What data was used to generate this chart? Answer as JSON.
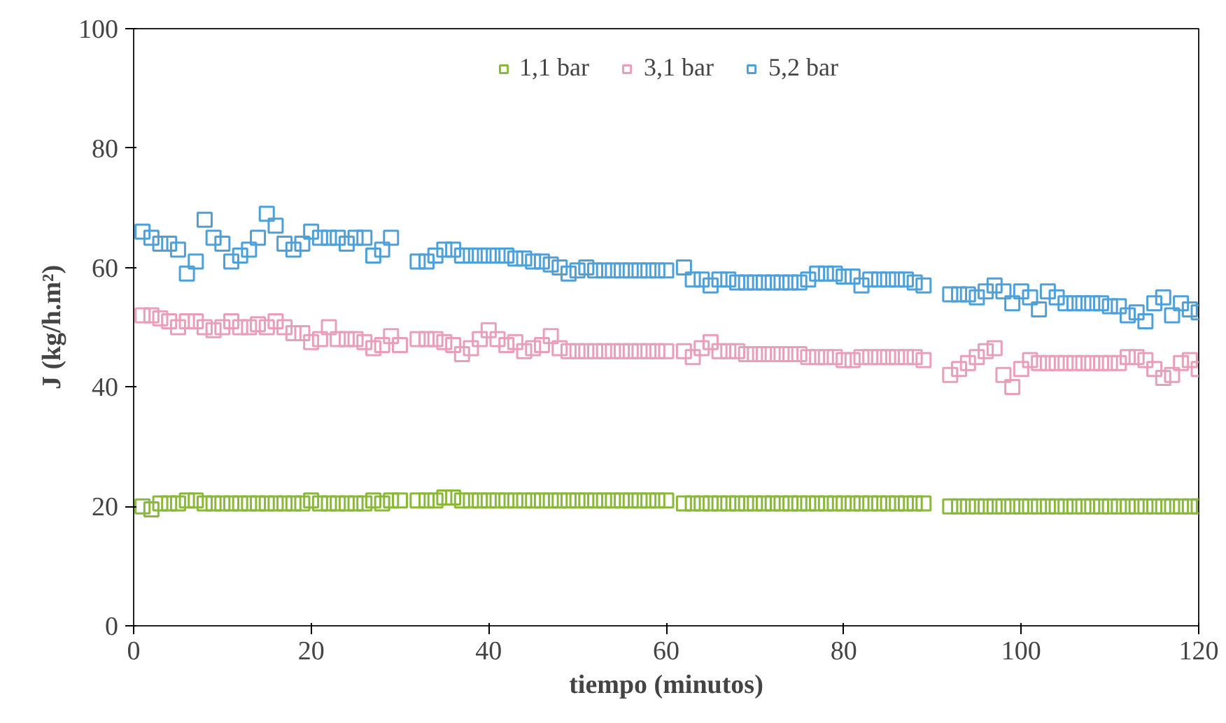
{
  "chart_data": {
    "type": "scatter",
    "xlabel": "tiempo (minutos)",
    "ylabel": "J (kg/h.m²)",
    "xlim": [
      0,
      120
    ],
    "ylim": [
      0,
      100
    ],
    "xticks": [
      0,
      20,
      40,
      60,
      80,
      100,
      120
    ],
    "yticks": [
      0,
      20,
      40,
      60,
      80,
      100
    ],
    "grid": false,
    "legend": "top",
    "marker": "square",
    "series": [
      {
        "name": "1,1 bar",
        "color": "#8ab83c",
        "x": [
          1,
          2,
          3,
          4,
          5,
          6,
          7,
          8,
          9,
          10,
          11,
          12,
          13,
          14,
          15,
          16,
          17,
          18,
          19,
          20,
          21,
          22,
          23,
          24,
          25,
          26,
          27,
          28,
          29,
          30,
          32,
          33,
          34,
          35,
          36,
          37,
          38,
          39,
          40,
          41,
          42,
          43,
          44,
          45,
          46,
          47,
          48,
          49,
          50,
          51,
          52,
          53,
          54,
          55,
          56,
          57,
          58,
          59,
          60,
          62,
          63,
          64,
          65,
          66,
          67,
          68,
          69,
          70,
          71,
          72,
          73,
          74,
          75,
          76,
          77,
          78,
          79,
          80,
          81,
          82,
          83,
          84,
          85,
          86,
          87,
          88,
          89,
          92,
          93,
          94,
          95,
          96,
          97,
          98,
          99,
          100,
          101,
          102,
          103,
          104,
          105,
          106,
          107,
          108,
          109,
          110,
          111,
          112,
          113,
          114,
          115,
          116,
          117,
          118,
          119,
          120
        ],
        "values": [
          20,
          19.5,
          20.5,
          20.5,
          20.5,
          21,
          21,
          20.5,
          20.5,
          20.5,
          20.5,
          20.5,
          20.5,
          20.5,
          20.5,
          20.5,
          20.5,
          20.5,
          20.5,
          21,
          20.5,
          20.5,
          20.5,
          20.5,
          20.5,
          20.5,
          21,
          20.5,
          21,
          21,
          21,
          21,
          21,
          21.5,
          21.5,
          21,
          21,
          21,
          21,
          21,
          21,
          21,
          21,
          21,
          21,
          21,
          21,
          21,
          21,
          21,
          21,
          21,
          21,
          21,
          21,
          21,
          21,
          21,
          21,
          20.5,
          20.5,
          20.5,
          20.5,
          20.5,
          20.5,
          20.5,
          20.5,
          20.5,
          20.5,
          20.5,
          20.5,
          20.5,
          20.5,
          20.5,
          20.5,
          20.5,
          20.5,
          20.5,
          20.5,
          20.5,
          20.5,
          20.5,
          20.5,
          20.5,
          20.5,
          20.5,
          20.5,
          20,
          20,
          20,
          20,
          20,
          20,
          20,
          20,
          20,
          20,
          20,
          20,
          20,
          20,
          20,
          20,
          20,
          20,
          20,
          20,
          20,
          20,
          20,
          20,
          20,
          20,
          20,
          20,
          20
        ]
      },
      {
        "name": "3,1 bar",
        "color": "#e8a0b8",
        "x": [
          1,
          2,
          3,
          4,
          5,
          6,
          7,
          8,
          9,
          10,
          11,
          12,
          13,
          14,
          15,
          16,
          17,
          18,
          19,
          20,
          21,
          22,
          23,
          24,
          25,
          26,
          27,
          28,
          29,
          30,
          32,
          33,
          34,
          35,
          36,
          37,
          38,
          39,
          40,
          41,
          42,
          43,
          44,
          45,
          46,
          47,
          48,
          49,
          50,
          51,
          52,
          53,
          54,
          55,
          56,
          57,
          58,
          59,
          60,
          62,
          63,
          64,
          65,
          66,
          67,
          68,
          69,
          70,
          71,
          72,
          73,
          74,
          75,
          76,
          77,
          78,
          79,
          80,
          81,
          82,
          83,
          84,
          85,
          86,
          87,
          88,
          89,
          92,
          93,
          94,
          95,
          96,
          97,
          98,
          99,
          100,
          101,
          102,
          103,
          104,
          105,
          106,
          107,
          108,
          109,
          110,
          111,
          112,
          113,
          114,
          115,
          116,
          117,
          118,
          119,
          120
        ],
        "values": [
          52,
          52,
          51.5,
          51,
          50,
          51,
          51,
          50,
          49.5,
          50,
          51,
          50,
          50,
          50.5,
          50,
          51,
          50,
          49,
          49,
          47.5,
          48,
          50,
          48,
          48,
          48,
          47.5,
          46.5,
          47,
          48.5,
          47,
          48,
          48,
          48,
          47.5,
          47,
          45.5,
          46.5,
          48,
          49.5,
          48,
          47,
          47.5,
          46,
          46.5,
          47,
          48.5,
          46.5,
          46,
          46,
          46,
          46,
          46,
          46,
          46,
          46,
          46,
          46,
          46,
          46,
          46,
          45,
          46.5,
          47.5,
          46,
          46,
          46,
          45.5,
          45.5,
          45.5,
          45.5,
          45.5,
          45.5,
          45.5,
          45,
          45,
          45,
          45,
          44.5,
          44.5,
          45,
          45,
          45,
          45,
          45,
          45,
          45,
          44.5,
          42,
          43,
          44,
          45,
          46,
          46.5,
          42,
          40,
          43,
          44.5,
          44,
          44,
          44,
          44,
          44,
          44,
          44,
          44,
          44,
          44,
          45,
          45,
          44.5,
          43,
          41.5,
          42,
          44,
          44.5,
          43
        ]
      },
      {
        "name": "5,2 bar",
        "color": "#4fa0d8",
        "x": [
          1,
          2,
          3,
          4,
          5,
          6,
          7,
          8,
          9,
          10,
          11,
          12,
          13,
          14,
          15,
          16,
          17,
          18,
          19,
          20,
          21,
          22,
          23,
          24,
          25,
          26,
          27,
          28,
          29,
          32,
          33,
          34,
          35,
          36,
          37,
          38,
          39,
          40,
          41,
          42,
          43,
          44,
          45,
          46,
          47,
          48,
          49,
          50,
          51,
          52,
          53,
          54,
          55,
          56,
          57,
          58,
          59,
          60,
          62,
          63,
          64,
          65,
          66,
          67,
          68,
          69,
          70,
          71,
          72,
          73,
          74,
          75,
          76,
          77,
          78,
          79,
          80,
          81,
          82,
          83,
          84,
          85,
          86,
          87,
          88,
          89,
          92,
          93,
          94,
          95,
          96,
          97,
          98,
          99,
          100,
          101,
          102,
          103,
          104,
          105,
          106,
          107,
          108,
          109,
          110,
          111,
          112,
          113,
          114,
          115,
          116,
          117,
          118,
          119,
          120
        ],
        "values": [
          66,
          65,
          64,
          64,
          63,
          59,
          61,
          68,
          65,
          64,
          61,
          62,
          63,
          65,
          69,
          67,
          64,
          63,
          64,
          66,
          65,
          65,
          65,
          64,
          65,
          65,
          62,
          63,
          65,
          61,
          61,
          62,
          63,
          63,
          62,
          62,
          62,
          62,
          62,
          62,
          61.5,
          61.5,
          61,
          61,
          60.5,
          60,
          59,
          59.5,
          60,
          59.5,
          59.5,
          59.5,
          59.5,
          59.5,
          59.5,
          59.5,
          59.5,
          59.5,
          60,
          58,
          58,
          57,
          58,
          58,
          57.5,
          57.5,
          57.5,
          57.5,
          57.5,
          57.5,
          57.5,
          57.5,
          58,
          59,
          59,
          59,
          58.5,
          58.5,
          57,
          58,
          58,
          58,
          58,
          58,
          57.5,
          57,
          55.5,
          55.5,
          55.5,
          55,
          56,
          57,
          56,
          54,
          56,
          55,
          53,
          56,
          55,
          54,
          54,
          54,
          54,
          54,
          53.5,
          53.5,
          52,
          52.5,
          51,
          54,
          55,
          52,
          54,
          53,
          52.5
        ]
      }
    ]
  }
}
